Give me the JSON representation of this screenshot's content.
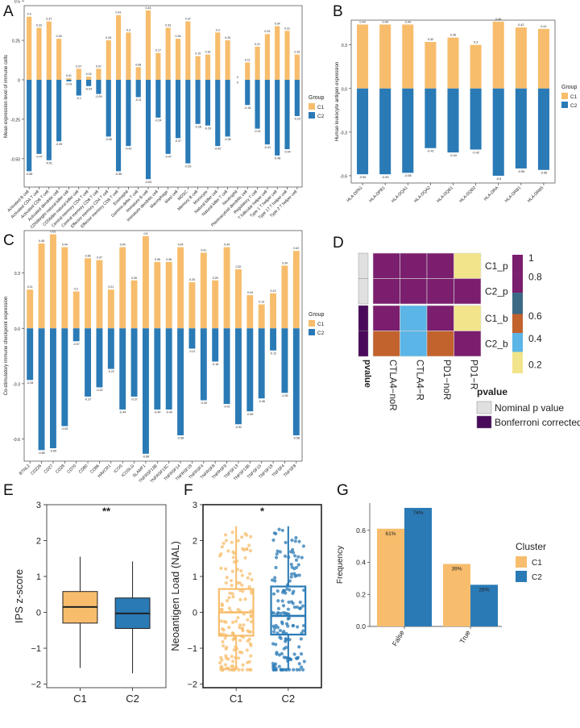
{
  "colors": {
    "c1": "#f7bd6c",
    "c2": "#2a7ab6",
    "hm_purple": "#7b1e6e",
    "hm_orange": "#c2622d",
    "hm_blue": "#5bb5e6",
    "hm_yellow": "#f2e48a",
    "hm_darkpurple": "#4a0a5c",
    "hm_grey": "#e0e0e0",
    "hm_slate": "#3b6a85"
  },
  "chart_data": [
    {
      "panel": "A",
      "type": "bar",
      "ylabel": "Mean expression level of immune cells",
      "ylim": [
        -0.68,
        0.47
      ],
      "yticks": [
        0.5,
        0.25,
        0,
        -0.25,
        -0.5
      ],
      "yticklabels": [
        "0.5",
        "0.25",
        "0",
        "-0.25",
        "-0.50"
      ],
      "legend_title": "Group",
      "legend_labels": [
        "C1",
        "C2"
      ],
      "categories": [
        "Activated B cell",
        "Activated CD4 T cell",
        "Activated CD8 T cell",
        "Activated dendritic cell",
        "CD56bright natural killer cell",
        "CD56dim natural killer cell",
        "Central memory CD4 T cell",
        "Central memory CD8 T cell",
        "Effector memory CD4 T cell",
        "Effector memory CD8 T cell",
        "Eosinophil",
        "Gamma delta T cell",
        "Immature B cell",
        "Immature dendritic cell",
        "Macrophage",
        "Mast cell",
        "MDSC",
        "Memory B cell",
        "Monocyte",
        "Natural killer cell",
        "Natural killer T cell",
        "Neutrophil",
        "Plasmacytoid dendritic cell",
        "Regulatory T cell",
        "T follicular helper cell",
        "Type 1 T helper cell",
        "Type 17 T helper cell",
        "Type 2 T helper cell"
      ],
      "series": [
        {
          "name": "C1",
          "values": [
            0.4,
            0.33,
            0.37,
            0.26,
            0.01,
            0.07,
            0.02,
            0.07,
            0.25,
            0.41,
            0.3,
            0.08,
            0.44,
            0.17,
            0.33,
            0.26,
            0.37,
            0.15,
            0.16,
            0.3,
            0.25,
            0.0,
            0.11,
            0.21,
            0.29,
            0.34,
            0.31,
            0.16
          ]
        },
        {
          "name": "C2",
          "values": [
            -0.58,
            -0.47,
            -0.51,
            -0.39,
            -0.01,
            -0.1,
            -0.04,
            -0.09,
            -0.36,
            -0.58,
            -0.42,
            -0.11,
            -0.63,
            -0.24,
            -0.47,
            -0.37,
            -0.53,
            -0.28,
            -0.29,
            -0.42,
            -0.36,
            0.0,
            -0.16,
            -0.31,
            -0.41,
            -0.48,
            -0.44,
            -0.23
          ]
        }
      ],
      "labels_c1": [
        "0.4",
        "0.33",
        "0.37",
        "0.26",
        "0.01",
        "0.07",
        "0.02",
        "0.07",
        "0.25",
        "0.41",
        "0.3",
        "0.08",
        "0.44",
        "0.17",
        "0.33",
        "0.26",
        "0.37",
        "0.15",
        "0.16",
        "0.3",
        "0.25",
        "0",
        "0.11",
        "0.21",
        "0.29",
        "0.34",
        "0.31",
        "0.16"
      ],
      "labels_c2": [
        "-0.58",
        "-0.47",
        "-0.51",
        "-0.39",
        "-0.01",
        "-0.1",
        "-0.04",
        "-0.09",
        "-0.36",
        "-0.58",
        "-0.42",
        "-0.11",
        "-0.63",
        "-0.24",
        "-0.47",
        "-0.37",
        "-0.53",
        "-0.28",
        "-0.29",
        "-0.42",
        "-0.36",
        "0",
        "-0.16",
        "-0.31",
        "-0.41",
        "-0.48",
        "-0.44",
        "-0.23"
      ]
    },
    {
      "panel": "B",
      "type": "bar",
      "ylabel": "Human leukocyte antigen expression",
      "ylim": [
        -0.65,
        0.47
      ],
      "yticks": [
        0.3,
        0,
        -0.3,
        -0.6
      ],
      "yticklabels": [
        "0.3",
        "0.0",
        "-0.3",
        "-0.6"
      ],
      "legend_title": "Group",
      "legend_labels": [
        "C1",
        "C2"
      ],
      "categories": [
        "HLA-DPA1",
        "HLA-DPB1",
        "HLA-DQA1",
        "HLA-DQA2",
        "HLA-DQB1",
        "HLA-DQB2",
        "HLA-DRA",
        "HLA-DRB1",
        "HLA-DRB5"
      ],
      "series": [
        {
          "name": "C1",
          "values": [
            0.44,
            0.44,
            0.44,
            0.32,
            0.35,
            0.3,
            0.46,
            0.42,
            0.41
          ]
        },
        {
          "name": "C2",
          "values": [
            -0.59,
            -0.59,
            -0.58,
            -0.41,
            -0.44,
            -0.42,
            -0.6,
            -0.55,
            -0.56
          ]
        }
      ],
      "labels_c1": [
        "0.44",
        "0.44",
        "0.44",
        "0.32",
        "0.35",
        "0.3",
        "0.46",
        "0.42",
        "0.41"
      ],
      "labels_c2": [
        "-0.59",
        "-0.59",
        "-0.58",
        "-0.41",
        "-0.44",
        "-0.42",
        "-0.6",
        "-0.55",
        "-0.56"
      ]
    },
    {
      "panel": "C",
      "type": "bar",
      "ylabel": "Co-stimulatory immune checkpoint expression",
      "ylim": [
        -0.72,
        0.53
      ],
      "yticks": [
        0.3,
        0,
        -0.3,
        -0.6
      ],
      "yticklabels": [
        "0.3",
        "0.0",
        "-0.3",
        "-0.6"
      ],
      "legend_title": "Group",
      "legend_labels": [
        "C1",
        "C2"
      ],
      "categories": [
        "BTNL2",
        "CD226",
        "CD27",
        "CD28",
        "CD70",
        "CD80",
        "CD86",
        "HAVCR1",
        "ICOS",
        "ICOSLG",
        "SLAMF1",
        "TNFRSF13B",
        "TNFRSF13C",
        "TNFRSF14",
        "TNFRSF18",
        "TNFRSF4",
        "TNFRSF8",
        "TNFRSF9",
        "TNFSF13",
        "TNFSF13B",
        "TNFSF15",
        "TNFSF18",
        "TNFSF4",
        "TNFSF8"
      ],
      "series": [
        {
          "name": "C1",
          "values": [
            0.21,
            0.46,
            0.51,
            0.44,
            0.2,
            0.38,
            0.37,
            0.21,
            0.44,
            0.26,
            0.5,
            0.36,
            0.36,
            0.44,
            0.25,
            0.41,
            0.26,
            0.44,
            0.32,
            0.18,
            0.13,
            0.19,
            0.34,
            0.42
          ]
        },
        {
          "name": "C2",
          "values": [
            -0.28,
            -0.66,
            -0.65,
            -0.53,
            -0.07,
            -0.37,
            -0.32,
            -0.22,
            -0.44,
            -0.37,
            -0.68,
            -0.44,
            -0.44,
            -0.58,
            -0.11,
            -0.39,
            -0.18,
            -0.41,
            -0.52,
            -0.45,
            -0.38,
            -0.12,
            -0.35,
            -0.58
          ]
        }
      ],
      "labels_c1": [
        "0.21",
        "0.46",
        "0.51",
        "0.44",
        "0.2",
        "0.38",
        "0.37",
        "0.21",
        "0.44",
        "0.26",
        "0.5",
        "0.36",
        "0.36",
        "0.44",
        "0.25",
        "0.41",
        "0.26",
        "0.44",
        "0.32",
        "0.18",
        "0.13",
        "0.19",
        "0.34",
        "0.42"
      ],
      "labels_c2": [
        "-0.28",
        "-0.66",
        "-0.65",
        "-0.53",
        "-0.07",
        "-0.37",
        "-0.32",
        "-0.22",
        "-0.44",
        "-0.37",
        "-0.68",
        "-0.44",
        "-0.44",
        "-0.58",
        "-0.11",
        "-0.39",
        "-0.18",
        "-0.41",
        "-0.52",
        "-0.45",
        "-0.38",
        "-0.12",
        "-0.35",
        "-0.58"
      ]
    },
    {
      "panel": "D",
      "type": "heatmap",
      "rows": [
        "C1_p",
        "C2_p",
        "C1_b",
        "C2_b"
      ],
      "columns": [
        "CTLA4−noR",
        "CTLA4−R",
        "PD1−noR",
        "PD1−R"
      ],
      "values": [
        [
          1.0,
          1.0,
          1.0,
          0.1
        ],
        [
          1.0,
          1.0,
          1.0,
          1.0
        ],
        [
          1.0,
          0.3,
          1.0,
          0.1
        ],
        [
          0.5,
          0.3,
          0.5,
          1.0
        ]
      ],
      "row_annotation": [
        "Nominal p value",
        "Nominal p value",
        "Bonferroni corrected",
        "Bonferroni corrected"
      ],
      "row_annotation_label": "pvalue",
      "scale_labels": [
        "1",
        "0.8",
        "0.6",
        "0.4",
        "0.2"
      ],
      "legend_title": "pvalue",
      "legend_items": [
        "Nominal p value",
        "Bonferroni corrected"
      ]
    },
    {
      "panel": "E",
      "type": "box",
      "ylabel": "IPS z-score",
      "ylim": [
        -2.1,
        3.0
      ],
      "yticks": [
        -2,
        -1,
        0,
        1,
        2,
        3
      ],
      "yticklabels": [
        "−2",
        "−1",
        "0",
        "1",
        "2",
        "3"
      ],
      "categories": [
        "C1",
        "C2"
      ],
      "boxes": [
        {
          "name": "C1",
          "min": -1.55,
          "q1": -0.3,
          "median": 0.15,
          "q3": 0.58,
          "max": 1.55
        },
        {
          "name": "C2",
          "min": -1.7,
          "q1": -0.45,
          "median": -0.03,
          "q3": 0.4,
          "max": 1.42
        }
      ],
      "significance": "**"
    },
    {
      "panel": "F",
      "type": "box",
      "ylabel": "Neoantigen Load (NAL)",
      "ylim": [
        -2.1,
        3.0
      ],
      "yticks": [
        -2,
        -1,
        0,
        1,
        2,
        3
      ],
      "yticklabels": [
        "−2",
        "−1",
        "0",
        "1",
        "2",
        "3"
      ],
      "categories": [
        "C1",
        "C2"
      ],
      "boxes": [
        {
          "name": "C1",
          "min": -1.6,
          "q1": -0.65,
          "median": 0.0,
          "q3": 0.65,
          "max": 2.4
        },
        {
          "name": "C2",
          "min": -1.6,
          "q1": -0.62,
          "median": -0.1,
          "q3": 0.72,
          "max": 2.4
        }
      ],
      "significance": "*",
      "points_per_group": 150
    },
    {
      "panel": "G",
      "type": "bar",
      "ylabel": "Frequency",
      "ylim": [
        0,
        0.77
      ],
      "yticks": [
        0.0,
        0.2,
        0.4,
        0.6
      ],
      "yticklabels": [
        "0.0",
        "0.2",
        "0.4",
        "0.6"
      ],
      "categories": [
        "False",
        "True"
      ],
      "legend_title": "Cluster",
      "legend_labels": [
        "C1",
        "C2"
      ],
      "series": [
        {
          "name": "C1",
          "values": [
            0.61,
            0.39
          ],
          "labels": [
            "61%",
            "39%"
          ]
        },
        {
          "name": "C2",
          "values": [
            0.74,
            0.26
          ],
          "labels": [
            "74%",
            "26%"
          ]
        }
      ]
    }
  ]
}
